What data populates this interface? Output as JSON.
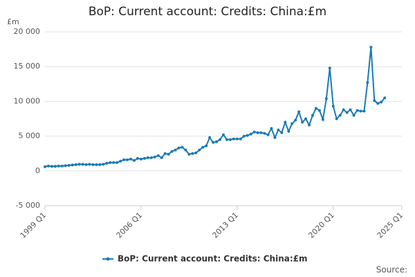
{
  "chart_data": {
    "type": "line",
    "title": "BoP: Current account: Credits: China:£m",
    "y_label": "£m",
    "source": "Source:",
    "categories": [
      "1999 Q1",
      null,
      null,
      null,
      null,
      null,
      null,
      null,
      null,
      null,
      null,
      null,
      null,
      null,
      null,
      null,
      null,
      null,
      null,
      null,
      null,
      null,
      null,
      null,
      null,
      null,
      null,
      null,
      "2006 Q1",
      null,
      null,
      null,
      null,
      null,
      null,
      null,
      null,
      null,
      null,
      null,
      null,
      null,
      null,
      null,
      null,
      null,
      null,
      null,
      null,
      null,
      null,
      null,
      null,
      null,
      null,
      null,
      "2013 Q1",
      null,
      null,
      null,
      null,
      null,
      null,
      null,
      null,
      null,
      null,
      null,
      null,
      null,
      null,
      null,
      null,
      null,
      null,
      null,
      null,
      null,
      null,
      null,
      null,
      null,
      null,
      null,
      "2020 Q1",
      null,
      null,
      null,
      null,
      null,
      null,
      null,
      null,
      null,
      null,
      null,
      null,
      null,
      null,
      null,
      null,
      null,
      null,
      null,
      "2025 Q1"
    ],
    "series": [
      {
        "name": "BoP: Current account: Credits: China:£m",
        "color": "#1a7ab5",
        "values": [
          600,
          700,
          650,
          650,
          700,
          700,
          750,
          800,
          850,
          900,
          950,
          950,
          900,
          950,
          900,
          900,
          900,
          950,
          1100,
          1200,
          1200,
          1200,
          1400,
          1600,
          1600,
          1700,
          1500,
          1800,
          1700,
          1800,
          1900,
          1900,
          2000,
          2200,
          1900,
          2500,
          2400,
          2800,
          3000,
          3300,
          3400,
          3000,
          2400,
          2500,
          2600,
          3000,
          3400,
          3600,
          4800,
          4100,
          4200,
          4500,
          5200,
          4500,
          4500,
          4600,
          4600,
          4600,
          5000,
          5100,
          5300,
          5600,
          5500,
          5500,
          5400,
          5200,
          6100,
          4800,
          5900,
          5500,
          7000,
          5700,
          6800,
          7300,
          8500,
          7000,
          7500,
          6600,
          8000,
          9000,
          8700,
          7400,
          10400,
          14800,
          9300,
          7500,
          8000,
          8800,
          8400,
          8800,
          8000,
          8700,
          8600,
          8600,
          12700,
          17800,
          10100,
          9700,
          9900,
          10500,
          null,
          null,
          null,
          null,
          null
        ]
      }
    ],
    "ylim": [
      -5000,
      20000
    ],
    "yticks": [
      {
        "value": -5000,
        "label": "-5 000"
      },
      0,
      {
        "value": 5000,
        "label": "5 000"
      },
      {
        "value": 10000,
        "label": "10 000"
      },
      {
        "value": 15000,
        "label": "15 000"
      },
      {
        "value": 20000,
        "label": "20 000"
      }
    ],
    "grid": true,
    "legend": "bottom"
  }
}
